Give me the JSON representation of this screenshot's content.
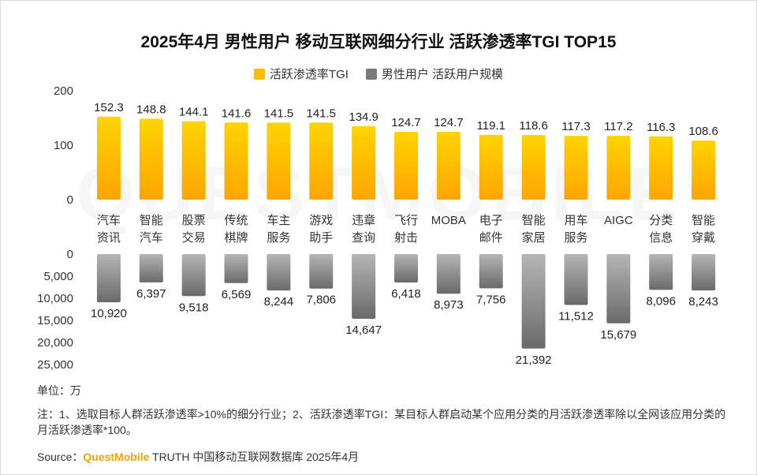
{
  "title": "2025年4月 男性用户 移动互联网细分行业 活跃渗透率TGI TOP15",
  "legend": {
    "series1": "活跃渗透率TGI",
    "series2": "男性用户 活跃用户规模"
  },
  "colors": {
    "bar_top": "#ffd400",
    "bar_bottom": "#ffa500",
    "gray_top": "#6e6e6e",
    "gray_bottom": "#b0b0b0"
  },
  "unit": "单位：万",
  "note": "注：1、选取目标人群活跃渗透率>10%的细分行业；2、活跃渗透率TGI：某目标人群启动某个应用分类的月活跃渗透率除以全网该应用分类的月活跃渗透率*100。",
  "source": {
    "prefix": "Source：",
    "brand": "QuestMobile",
    "suffix": " TRUTH 中国移动互联网数据库 2025年4月"
  },
  "watermark": "QUESTMOBILE",
  "chart_data": {
    "type": "bar",
    "title": "2025年4月 男性用户 移动互联网细分行业 活跃渗透率TGI TOP15",
    "categories": [
      [
        "汽车",
        "资讯"
      ],
      [
        "智能",
        "汽车"
      ],
      [
        "股票",
        "交易"
      ],
      [
        "传统",
        "棋牌"
      ],
      [
        "车主",
        "服务"
      ],
      [
        "游戏",
        "助手"
      ],
      [
        "违章",
        "查询"
      ],
      [
        "飞行",
        "射击"
      ],
      [
        "MOBA"
      ],
      [
        "电子",
        "邮件"
      ],
      [
        "智能",
        "家居"
      ],
      [
        "用车",
        "服务"
      ],
      [
        "AIGC"
      ],
      [
        "分类",
        "信息"
      ],
      [
        "智能",
        "穿戴"
      ]
    ],
    "series": [
      {
        "name": "活跃渗透率TGI",
        "values": [
          152.3,
          148.8,
          144.1,
          141.6,
          141.5,
          141.5,
          134.9,
          124.7,
          124.7,
          119.1,
          118.6,
          117.3,
          117.2,
          116.3,
          108.6
        ],
        "labels": [
          "152.3",
          "148.8",
          "144.1",
          "141.6",
          "141.5",
          "141.5",
          "134.9",
          "124.7",
          "124.7",
          "119.1",
          "118.6",
          "117.3",
          "117.2",
          "116.3",
          "108.6"
        ],
        "axis": {
          "ylim": [
            0,
            200
          ],
          "ticks": [
            "0",
            "100",
            "200"
          ]
        }
      },
      {
        "name": "男性用户 活跃用户规模",
        "values": [
          10920,
          6397,
          9518,
          6569,
          8244,
          7806,
          14647,
          6418,
          8973,
          7756,
          21392,
          11512,
          15679,
          8096,
          8243
        ],
        "labels": [
          "10,920",
          "6,397",
          "9,518",
          "6,569",
          "8,244",
          "7,806",
          "14,647",
          "6,418",
          "8,973",
          "7,756",
          "21,392",
          "11,512",
          "15,679",
          "8,096",
          "8,243"
        ],
        "axis": {
          "ylim": [
            0,
            25000
          ],
          "ticks": [
            "0",
            "5,000",
            "10,000",
            "15,000",
            "20,000",
            "25,000"
          ],
          "inverted": true
        }
      }
    ]
  }
}
